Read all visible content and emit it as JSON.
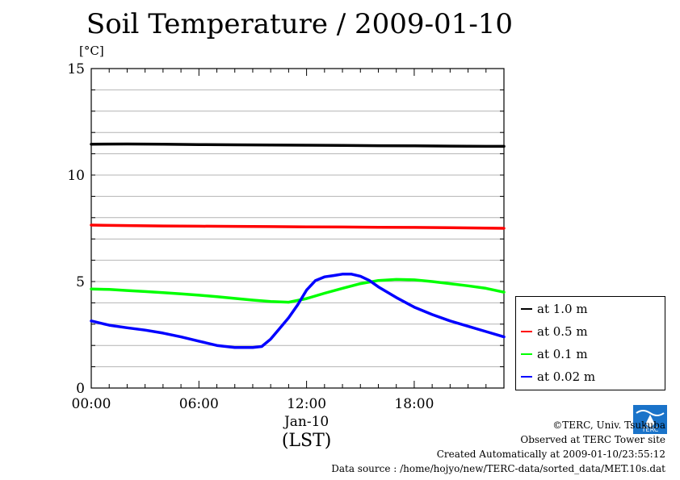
{
  "chart_data": {
    "type": "line",
    "title": "Soil Temperature / 2009-01-10",
    "ylabel": "[°C]",
    "xlabel": "(LST)",
    "date_label": "Jan-10",
    "ylim": [
      0,
      15
    ],
    "xlim": [
      0,
      23
    ],
    "yticks": [
      0,
      5,
      10,
      15
    ],
    "xticks": [
      {
        "value": 0,
        "label": "00:00"
      },
      {
        "value": 6,
        "label": "06:00"
      },
      {
        "value": 12,
        "label": "12:00"
      },
      {
        "value": 18,
        "label": "18:00"
      }
    ],
    "grid": true,
    "legend_position": "bottom-right outside",
    "series": [
      {
        "name": "at 1.0 m",
        "color": "#000000",
        "x": [
          0,
          2,
          4,
          6,
          8,
          10,
          12,
          14,
          16,
          18,
          20,
          22,
          23
        ],
        "y": [
          11.45,
          11.46,
          11.45,
          11.43,
          11.42,
          11.41,
          11.4,
          11.39,
          11.38,
          11.37,
          11.36,
          11.35,
          11.35
        ]
      },
      {
        "name": "at 0.5 m",
        "color": "#ff0000",
        "x": [
          0,
          2,
          4,
          6,
          8,
          10,
          12,
          14,
          16,
          18,
          20,
          22,
          23
        ],
        "y": [
          7.65,
          7.63,
          7.61,
          7.6,
          7.59,
          7.58,
          7.57,
          7.56,
          7.55,
          7.54,
          7.53,
          7.51,
          7.5
        ]
      },
      {
        "name": "at 0.1 m",
        "color": "#00ff00",
        "x": [
          0,
          1,
          2,
          3,
          4,
          5,
          6,
          7,
          8,
          9,
          10,
          11,
          12,
          13,
          14,
          15,
          16,
          17,
          18,
          19,
          20,
          21,
          22,
          23
        ],
        "y": [
          4.65,
          4.63,
          4.58,
          4.53,
          4.48,
          4.42,
          4.36,
          4.29,
          4.21,
          4.13,
          4.06,
          4.03,
          4.2,
          4.45,
          4.68,
          4.9,
          5.05,
          5.1,
          5.08,
          5.0,
          4.9,
          4.8,
          4.68,
          4.5
        ]
      },
      {
        "name": "at 0.02 m",
        "color": "#0000ff",
        "x": [
          0,
          1,
          2,
          3,
          4,
          5,
          6,
          7,
          8,
          9,
          9.5,
          10,
          10.5,
          11,
          11.5,
          12,
          12.5,
          13,
          13.5,
          14,
          14.5,
          15,
          15.5,
          16,
          17,
          18,
          19,
          20,
          21,
          22,
          23
        ],
        "y": [
          3.15,
          2.95,
          2.83,
          2.72,
          2.58,
          2.4,
          2.2,
          2.0,
          1.9,
          1.9,
          1.95,
          2.3,
          2.8,
          3.3,
          3.9,
          4.6,
          5.05,
          5.22,
          5.28,
          5.35,
          5.35,
          5.25,
          5.05,
          4.75,
          4.25,
          3.8,
          3.45,
          3.15,
          2.9,
          2.65,
          2.4
        ]
      }
    ]
  },
  "credits": {
    "copyright": "©TERC, Univ. Tsukuba",
    "observed": "Observed at TERC Tower site",
    "created": "Created Automatically at 2009-01-10/23:55:12",
    "source": "Data source : /home/hojyo/new/TERC-data/sorted_data/MET.10s.dat",
    "logo_text": "TERC"
  }
}
